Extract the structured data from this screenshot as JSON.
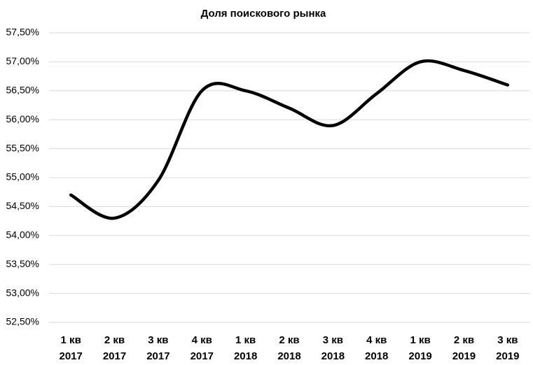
{
  "chart_data": {
    "type": "line",
    "title": "Доля поискового рынка",
    "categories": [
      [
        "1 кв",
        "2017"
      ],
      [
        "2 кв",
        "2017"
      ],
      [
        "3 кв",
        "2017"
      ],
      [
        "4 кв",
        "2017"
      ],
      [
        "1 кв",
        "2018"
      ],
      [
        "2 кв",
        "2018"
      ],
      [
        "3 кв",
        "2018"
      ],
      [
        "4 кв",
        "2018"
      ],
      [
        "1 кв",
        "2019"
      ],
      [
        "2 кв",
        "2019"
      ],
      [
        "3 кв",
        "2019"
      ]
    ],
    "values": [
      54.7,
      54.3,
      54.95,
      56.5,
      56.5,
      56.2,
      55.9,
      56.45,
      57.0,
      56.85,
      56.6
    ],
    "color": "#000000",
    "ylim": [
      52.5,
      57.5
    ],
    "yticks": [
      {
        "value": 52.5,
        "label": "52,50%"
      },
      {
        "value": 53.0,
        "label": "53,00%"
      },
      {
        "value": 53.5,
        "label": "53,50%"
      },
      {
        "value": 54.0,
        "label": "54,00%"
      },
      {
        "value": 54.5,
        "label": "54,50%"
      },
      {
        "value": 55.0,
        "label": "55,00%"
      },
      {
        "value": 55.5,
        "label": "55,50%"
      },
      {
        "value": 56.0,
        "label": "56,00%"
      },
      {
        "value": 56.5,
        "label": "56,50%"
      },
      {
        "value": 57.0,
        "label": "57,00%"
      },
      {
        "value": 57.5,
        "label": "57,50%"
      }
    ],
    "grid": true
  }
}
